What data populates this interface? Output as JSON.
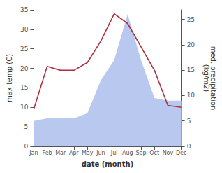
{
  "chart_data": {
    "type": "line",
    "categories": [
      "Jan",
      "Feb",
      "Mar",
      "Apr",
      "May",
      "Jun",
      "Jul",
      "Aug",
      "Sep",
      "Oct",
      "Nov",
      "Dec"
    ],
    "xlabel": "date (month)",
    "ylabel": "max temp (C)",
    "y2label": "med. precipitation\n(kg/m2)",
    "ylim": [
      0,
      35
    ],
    "yticks": [
      0,
      5,
      10,
      15,
      20,
      25,
      30,
      35
    ],
    "y2lim": [
      0,
      26.875
    ],
    "y2ticks": [
      0,
      5,
      10,
      15,
      20,
      25
    ],
    "grid": false,
    "series": [
      {
        "type": "area",
        "axis": "y2",
        "color": "#b8c8ee",
        "values": [
          5.0,
          5.5,
          5.5,
          5.5,
          6.5,
          13.0,
          17.0,
          26.0,
          17.0,
          9.5,
          9.0,
          9.0
        ]
      },
      {
        "type": "line",
        "axis": "y",
        "color": "#b03040",
        "values": [
          9.5,
          20.5,
          19.5,
          19.5,
          21.5,
          27.0,
          34.0,
          31.5,
          25.5,
          19.5,
          10.5,
          10.0
        ]
      }
    ]
  }
}
